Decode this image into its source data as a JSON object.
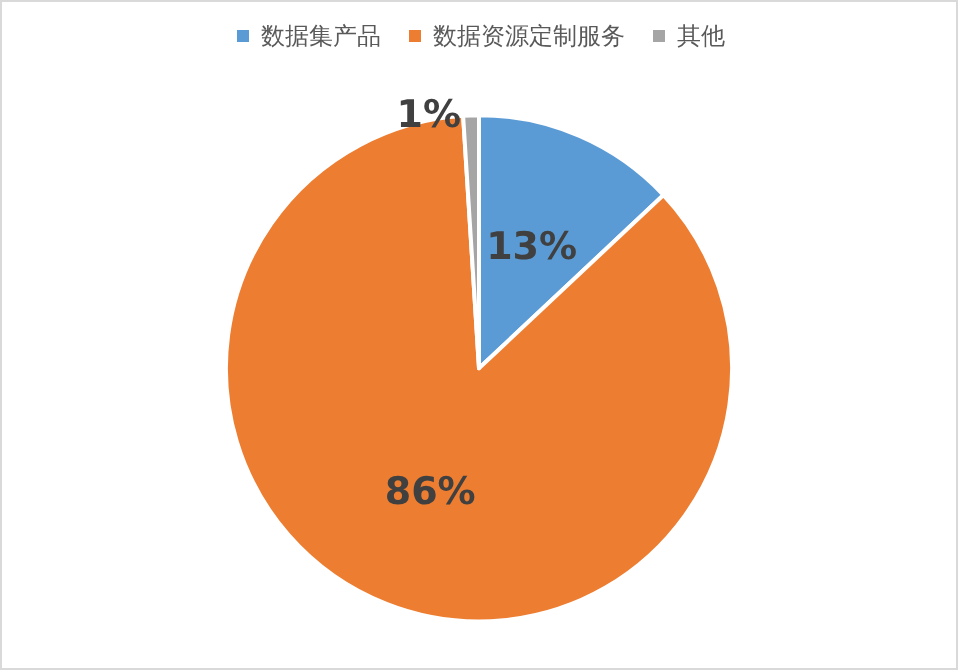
{
  "chart_data": {
    "type": "pie",
    "categories": [
      "数据集产品",
      "数据资源定制服务",
      "其他"
    ],
    "values": [
      13,
      86,
      1
    ],
    "colors": [
      "#5b9bd5",
      "#ed7d31",
      "#a5a5a5"
    ],
    "value_labels": [
      "13%",
      "86%",
      "1%"
    ],
    "legend": "top"
  }
}
